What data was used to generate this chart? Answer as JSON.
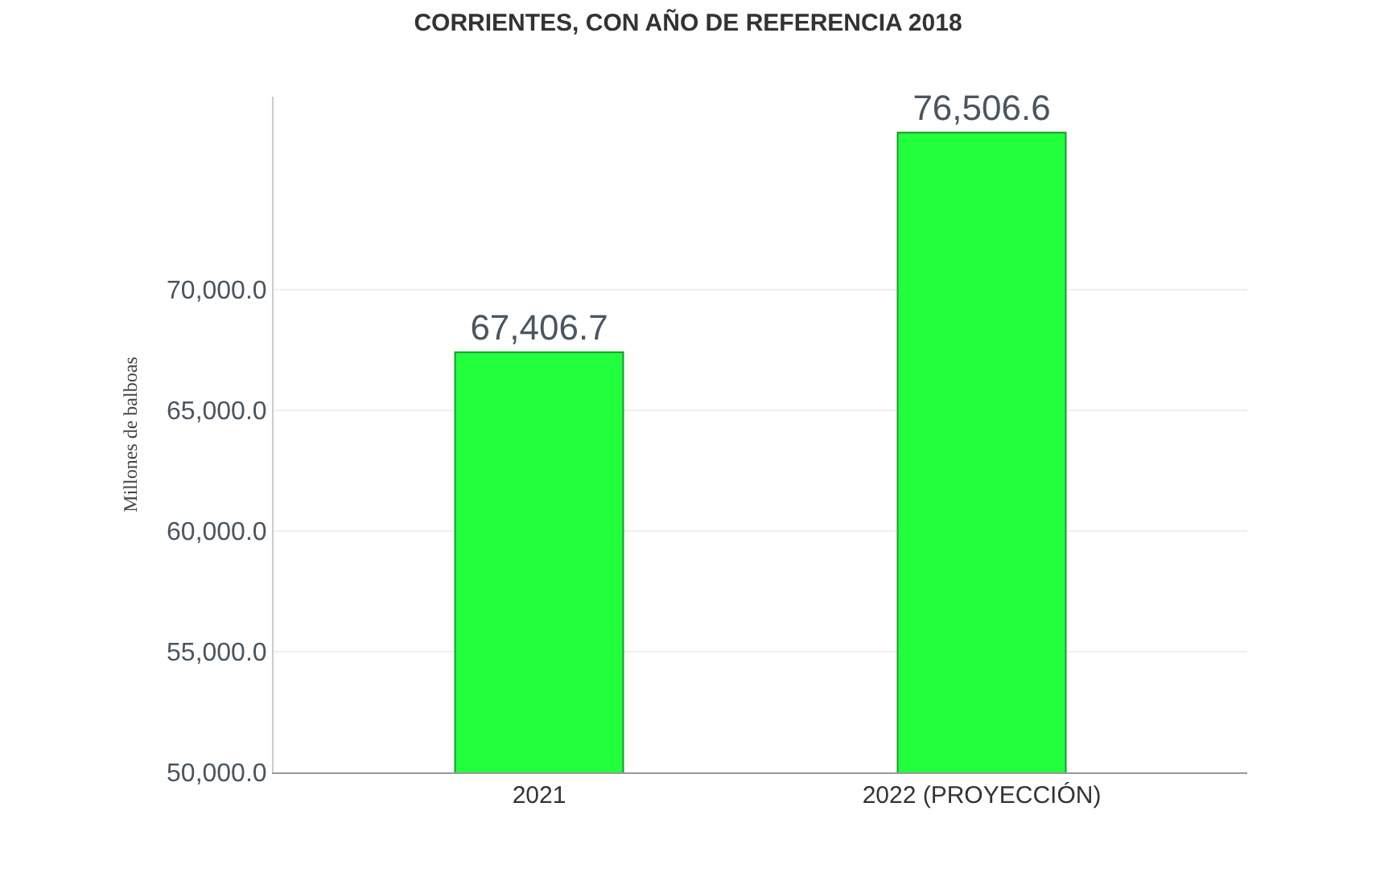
{
  "chart_data": {
    "type": "bar",
    "title": "CORRIENTES, CON AÑO DE REFERENCIA 2018",
    "ylabel": "Millones de balboas",
    "categories": [
      "2021",
      "2022 (PROYECCIÓN)"
    ],
    "series": [
      {
        "color": "#22ff3c",
        "values": [
          67406.7,
          76506.6
        ],
        "value_labels": [
          "67,406.7",
          "76,506.6"
        ]
      }
    ],
    "ylim": [
      50000,
      78000
    ],
    "yticks": [
      {
        "value": 50000,
        "label": "50,000.0"
      },
      {
        "value": 55000,
        "label": "55,000.0"
      },
      {
        "value": 60000,
        "label": "60,000.0"
      },
      {
        "value": 65000,
        "label": "65,000.0"
      },
      {
        "value": 70000,
        "label": "70,000.0"
      }
    ],
    "grid": "y",
    "legend": false
  }
}
